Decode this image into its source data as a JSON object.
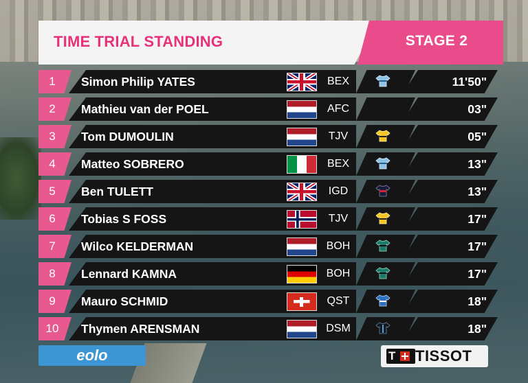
{
  "header": {
    "title": "TIME TRIAL STANDING",
    "stage": "STAGE 2"
  },
  "rows": [
    {
      "pos": "1",
      "name": "Simon Philip YATES",
      "flag": "gb-flag",
      "team": "BEX",
      "jersey": "jersey-icon",
      "time": "11'50\""
    },
    {
      "pos": "2",
      "name": "Mathieu van der POEL",
      "flag": "netherlands-flag",
      "team": "AFC",
      "jersey": "",
      "time": "03\""
    },
    {
      "pos": "3",
      "name": "Tom DUMOULIN",
      "flag": "netherlands-flag",
      "team": "TJV",
      "jersey": "jersey-icon",
      "time": "05\""
    },
    {
      "pos": "4",
      "name": "Matteo SOBRERO",
      "flag": "italy-flag",
      "team": "BEX",
      "jersey": "jersey-icon",
      "time": "13\""
    },
    {
      "pos": "5",
      "name": "Ben TULETT",
      "flag": "gb-flag",
      "team": "IGD",
      "jersey": "jersey-icon",
      "time": "13\""
    },
    {
      "pos": "6",
      "name": "Tobias S FOSS",
      "flag": "norway-flag",
      "team": "TJV",
      "jersey": "jersey-icon",
      "time": "17\""
    },
    {
      "pos": "7",
      "name": "Wilco KELDERMAN",
      "flag": "netherlands-flag",
      "team": "BOH",
      "jersey": "jersey-icon",
      "time": "17\""
    },
    {
      "pos": "8",
      "name": "Lennard KAMNA",
      "flag": "germany-flag",
      "team": "BOH",
      "jersey": "jersey-icon",
      "time": "17\""
    },
    {
      "pos": "9",
      "name": "Mauro SCHMID",
      "flag": "switzerland-flag",
      "team": "QST",
      "jersey": "jersey-icon",
      "time": "18\""
    },
    {
      "pos": "10",
      "name": "Thymen ARENSMAN",
      "flag": "netherlands-flag",
      "team": "DSM",
      "jersey": "jersey-icon",
      "time": "18\""
    }
  ],
  "footer": {
    "sponsor_left": "eolo",
    "sponsor_right": "TISSOT"
  },
  "colors": {
    "accent_pink": "#e94b8b",
    "title_pink": "#e7327a",
    "row_bg": "#151515",
    "eolo_blue": "#3d95d3"
  }
}
